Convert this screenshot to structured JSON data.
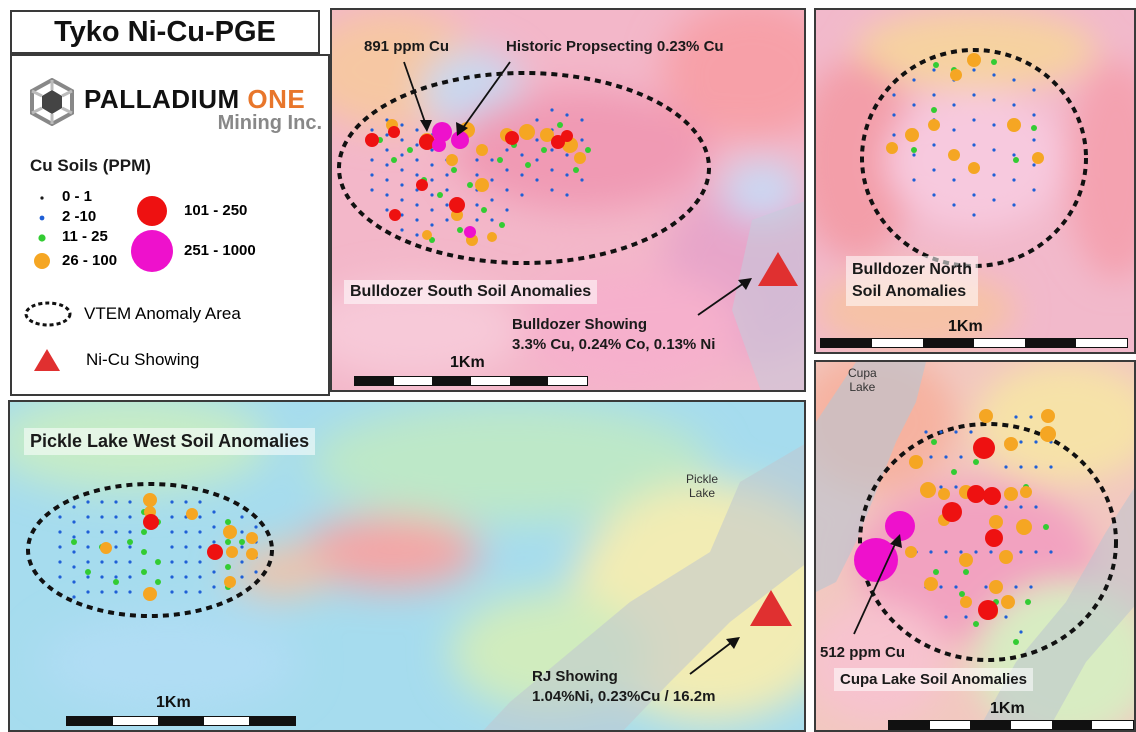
{
  "title": "Tyko Ni-Cu-PGE",
  "logo": {
    "line1_a": "PALLADIUM",
    "line1_b": "ONE",
    "line2": "Mining Inc."
  },
  "legend": {
    "title": "Cu Soils (PPM)",
    "classes": [
      {
        "label": "0 - 1",
        "color": "#1a1a1a"
      },
      {
        "label": "2 -10",
        "color": "#1f5fd6"
      },
      {
        "label": "11 - 25",
        "color": "#33cc33"
      },
      {
        "label": "26 - 100",
        "color": "#f5a623"
      },
      {
        "label": "101 - 250",
        "color": "#ee1111"
      },
      {
        "label": "251 - 1000",
        "color": "#ee11cc"
      }
    ],
    "vtem_label": "VTEM Anomaly Area",
    "showing_label": "Ni-Cu Showing"
  },
  "panels": {
    "bulldozer_south": {
      "label": "Bulldozer South Soil Anomalies",
      "callout_1": "891 ppm Cu",
      "callout_2": "Historic Propsecting 0.23% Cu",
      "showing_line1": "Bulldozer Showing",
      "showing_line2": "3.3% Cu, 0.24% Co, 0.13% Ni",
      "scale": "1Km"
    },
    "bulldozer_north": {
      "label_line1": "Bulldozer North",
      "label_line2": "Soil Anomalies",
      "scale": "1Km"
    },
    "pickle_lake_west": {
      "label": "Pickle Lake West Soil Anomalies",
      "lake_line1": "Pickle",
      "lake_line2": "Lake",
      "showing_line1": "RJ Showing",
      "showing_line2": "1.04%Ni, 0.23%Cu / 16.2m",
      "scale": "1Km"
    },
    "cupa_lake": {
      "label": "Cupa Lake Soil Anomalies",
      "lake_line1": "Cupa",
      "lake_line2": "Lake",
      "callout": "512 ppm Cu",
      "scale": "1Km"
    }
  }
}
